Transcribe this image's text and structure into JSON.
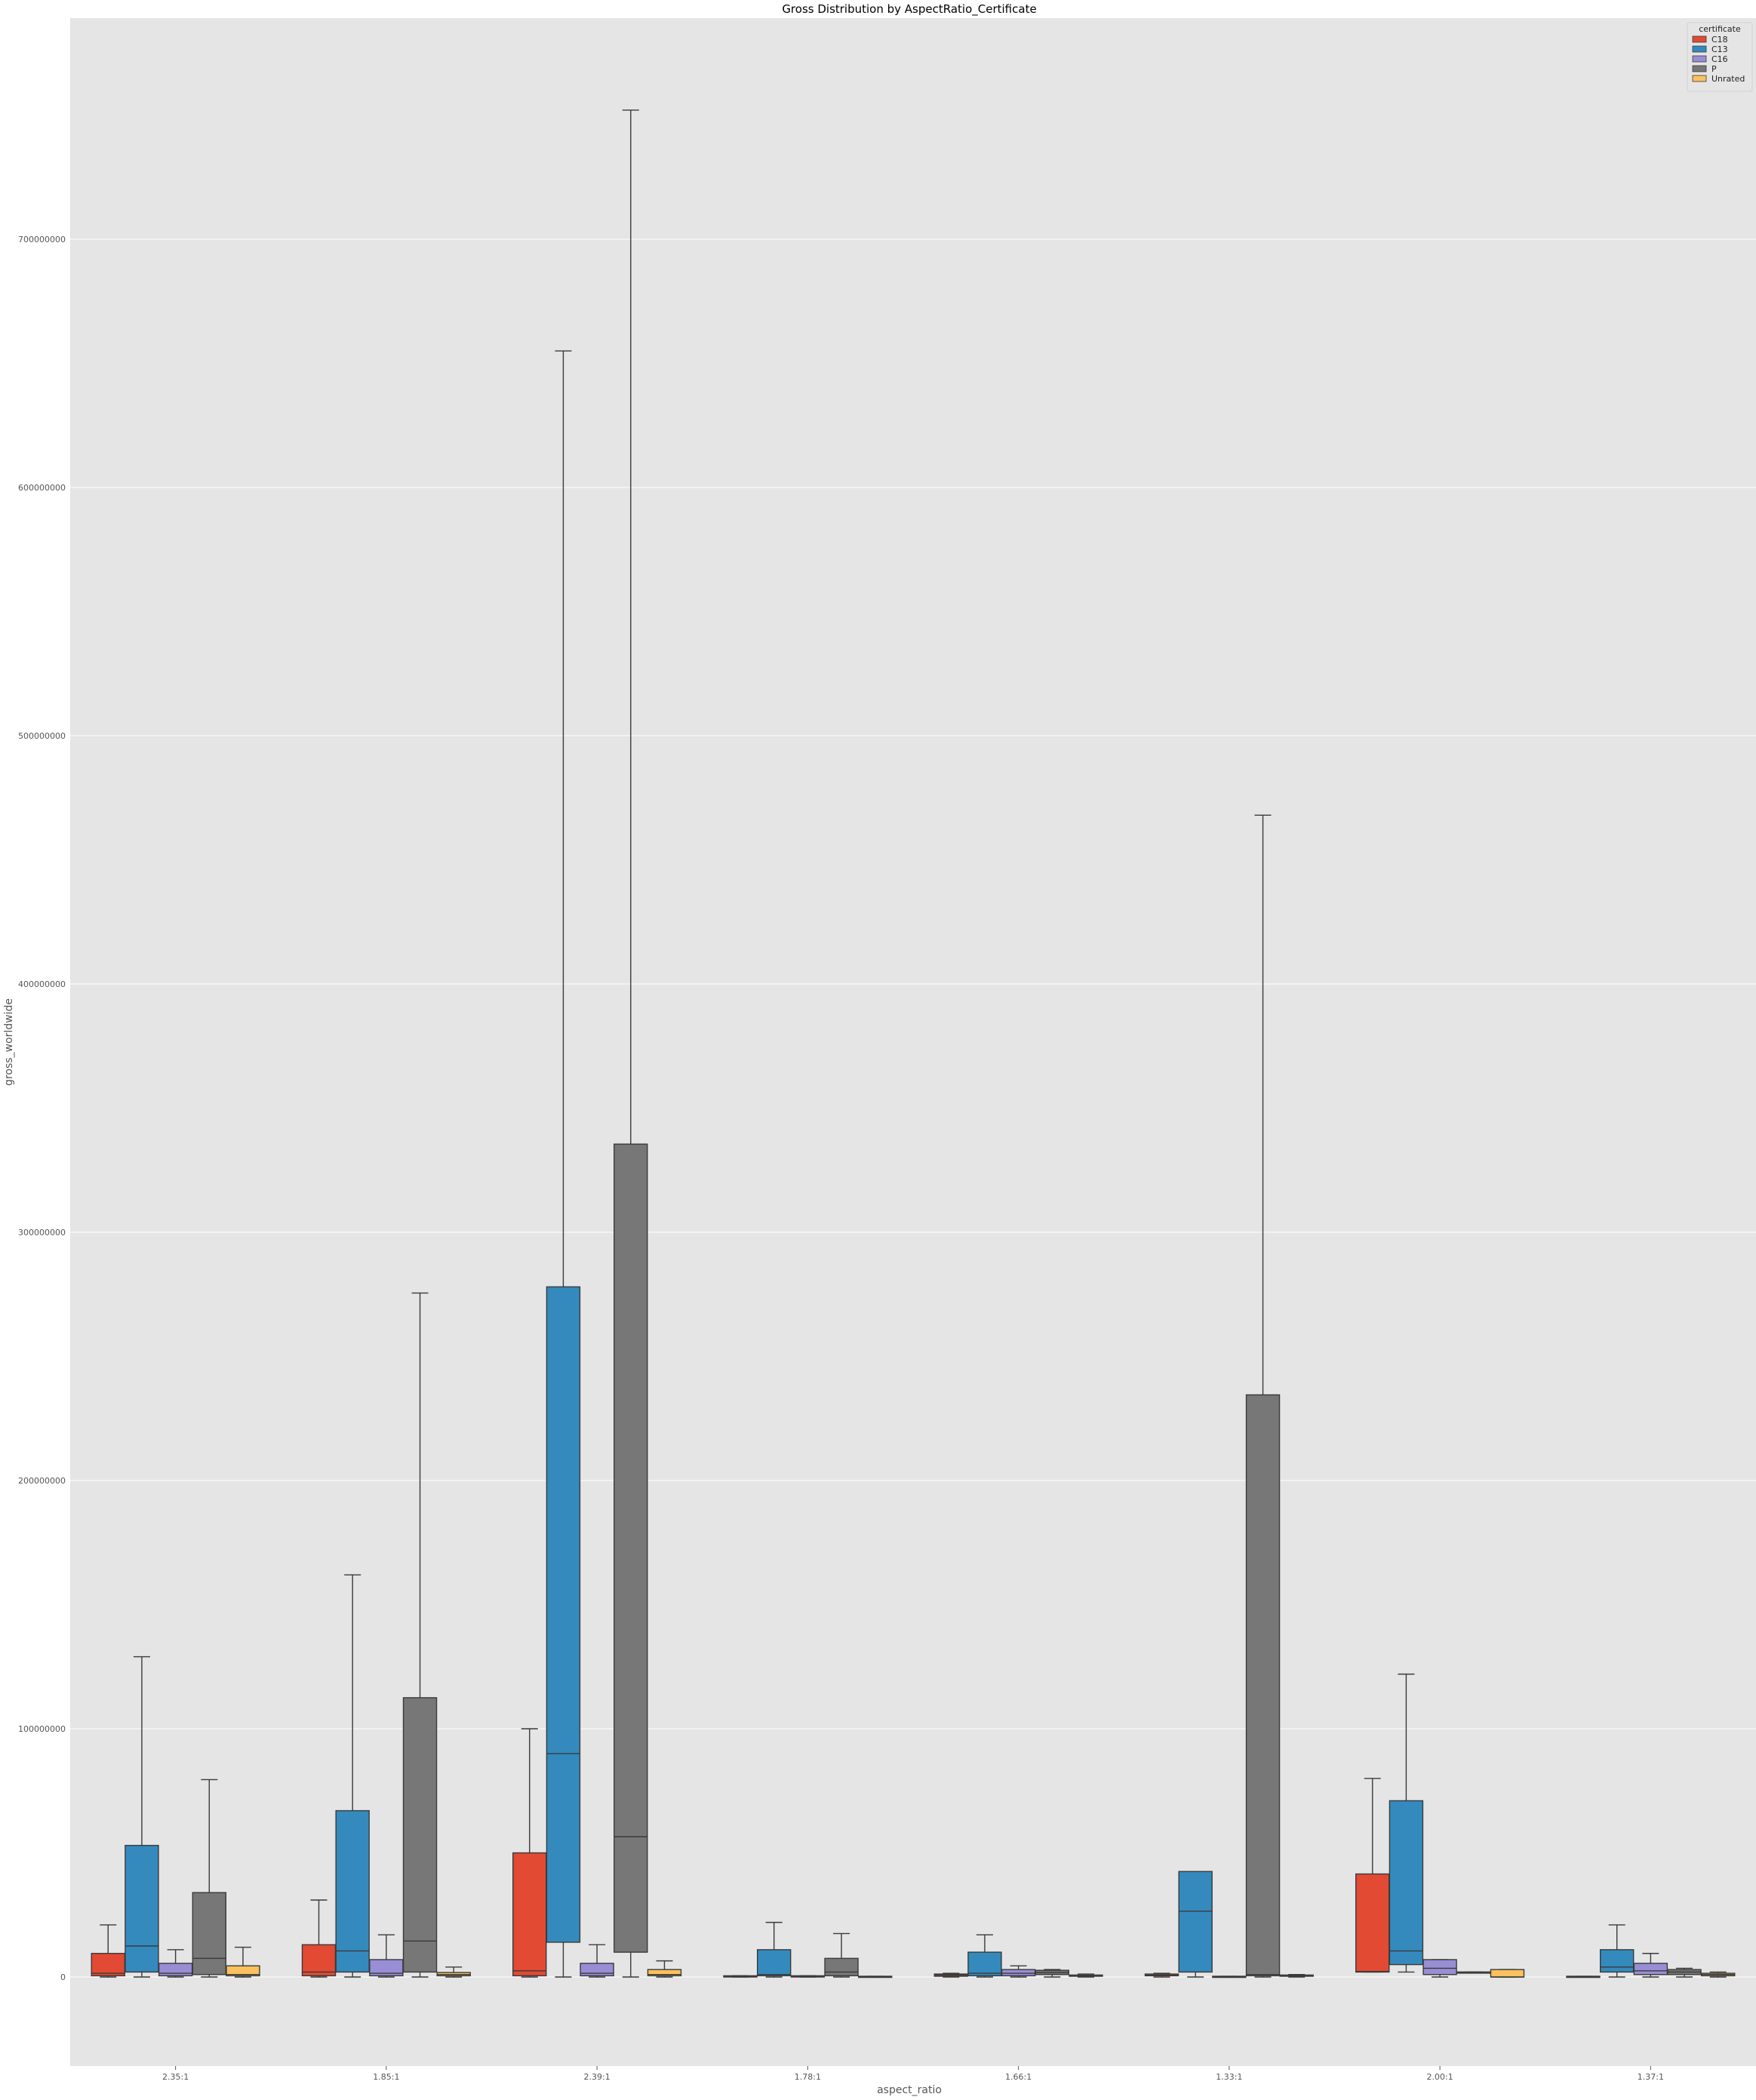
{
  "chart_data": {
    "type": "box",
    "title": "Gross Distribution by AspectRatio_Certificate",
    "xlabel": "aspect_ratio",
    "ylabel": "gross_worldwide",
    "ylim": [
      -40000000,
      790000000
    ],
    "yticks": [
      0,
      100000000,
      200000000,
      300000000,
      400000000,
      500000000,
      600000000,
      700000000
    ],
    "grid": true,
    "legend": {
      "title": "certificate",
      "placement": "top-right"
    },
    "categories": [
      "2.35:1",
      "1.85:1",
      "2.39:1",
      "1.78:1",
      "1.66:1",
      "1.33:1",
      "2.00:1",
      "1.37:1"
    ],
    "series": [
      {
        "name": "C18",
        "color": "#e24a33",
        "boxes": [
          {
            "whislo": 0,
            "q1": 500000,
            "med": 1500000,
            "q3": 9500000,
            "whishi": 21000000
          },
          {
            "whislo": 0,
            "q1": 500000,
            "med": 2000000,
            "q3": 13000000,
            "whishi": 31000000
          },
          {
            "whislo": 0,
            "q1": 500000,
            "med": 2500000,
            "q3": 50000000,
            "whishi": 100000000
          },
          {
            "whislo": 0,
            "q1": 0,
            "med": 200000,
            "q3": 500000,
            "whishi": 500000
          },
          {
            "whislo": 0,
            "q1": 300000,
            "med": 800000,
            "q3": 1200000,
            "whishi": 1500000
          },
          {
            "whislo": 0,
            "q1": 500000,
            "med": 700000,
            "q3": 1200000,
            "whishi": 1500000
          },
          {
            "whislo": 2000000,
            "q1": 2000000,
            "med": 2200000,
            "q3": 41500000,
            "whishi": 80000000
          },
          {
            "whislo": 0,
            "q1": 0,
            "med": 0,
            "q3": 300000,
            "whishi": 300000
          }
        ]
      },
      {
        "name": "C13",
        "color": "#348abd",
        "boxes": [
          {
            "whislo": 0,
            "q1": 2000000,
            "med": 12500000,
            "q3": 53000000,
            "whishi": 129000000
          },
          {
            "whislo": 0,
            "q1": 2000000,
            "med": 10500000,
            "q3": 67000000,
            "whishi": 162000000
          },
          {
            "whislo": 0,
            "q1": 14000000,
            "med": 90000000,
            "q3": 278000000,
            "whishi": 655000000
          },
          {
            "whislo": 0,
            "q1": 500000,
            "med": 1000000,
            "q3": 11000000,
            "whishi": 22000000
          },
          {
            "whislo": 0,
            "q1": 500000,
            "med": 1500000,
            "q3": 10000000,
            "whishi": 17000000
          },
          {
            "whislo": 0,
            "q1": 2000000,
            "med": 26500000,
            "q3": 42500000,
            "whishi": 42500000
          },
          {
            "whislo": 2000000,
            "q1": 5000000,
            "med": 10500000,
            "q3": 71000000,
            "whishi": 122000000
          },
          {
            "whislo": 0,
            "q1": 2000000,
            "med": 4000000,
            "q3": 11000000,
            "whishi": 21000000
          }
        ]
      },
      {
        "name": "C16",
        "color": "#988ed5",
        "boxes": [
          {
            "whislo": 0,
            "q1": 500000,
            "med": 1500000,
            "q3": 5500000,
            "whishi": 11000000
          },
          {
            "whislo": 0,
            "q1": 500000,
            "med": 1500000,
            "q3": 7000000,
            "whishi": 17000000
          },
          {
            "whislo": 0,
            "q1": 500000,
            "med": 1500000,
            "q3": 5500000,
            "whishi": 13000000
          },
          {
            "whislo": 0,
            "q1": 0,
            "med": 200000,
            "q3": 500000,
            "whishi": 500000
          },
          {
            "whislo": 0,
            "q1": 500000,
            "med": 1500000,
            "q3": 3000000,
            "whishi": 4500000
          },
          {
            "whislo": 0,
            "q1": 0,
            "med": 100000,
            "q3": 300000,
            "whishi": 300000
          },
          {
            "whislo": 0,
            "q1": 1000000,
            "med": 3500000,
            "q3": 7000000,
            "whishi": 7000000
          },
          {
            "whislo": 0,
            "q1": 1000000,
            "med": 2500000,
            "q3": 5500000,
            "whishi": 9500000
          }
        ]
      },
      {
        "name": "P",
        "color": "#777777",
        "boxes": [
          {
            "whislo": 0,
            "q1": 1000000,
            "med": 7500000,
            "q3": 34000000,
            "whishi": 79500000
          },
          {
            "whislo": 0,
            "q1": 2000000,
            "med": 14500000,
            "q3": 112500000,
            "whishi": 275500000
          },
          {
            "whislo": 0,
            "q1": 10000000,
            "med": 56500000,
            "q3": 335500000,
            "whishi": 752000000
          },
          {
            "whislo": 0,
            "q1": 500000,
            "med": 2000000,
            "q3": 7500000,
            "whishi": 17500000
          },
          {
            "whislo": 0,
            "q1": 1000000,
            "med": 1800000,
            "q3": 2700000,
            "whishi": 3000000
          },
          {
            "whislo": 0,
            "q1": 500000,
            "med": 1000000,
            "q3": 234500000,
            "whishi": 468000000
          },
          {
            "whislo": 2000000,
            "q1": 2000000,
            "med": 2000000,
            "q3": 2000000,
            "whishi": 2000000
          },
          {
            "whislo": 0,
            "q1": 1000000,
            "med": 2000000,
            "q3": 3000000,
            "whishi": 3500000
          }
        ]
      },
      {
        "name": "Unrated",
        "color": "#fbc15e",
        "boxes": [
          {
            "whislo": 0,
            "q1": 500000,
            "med": 1000000,
            "q3": 4500000,
            "whishi": 12000000
          },
          {
            "whislo": 0,
            "q1": 500000,
            "med": 1000000,
            "q3": 1800000,
            "whishi": 4000000
          },
          {
            "whislo": 0,
            "q1": 500000,
            "med": 1000000,
            "q3": 3000000,
            "whishi": 6500000
          },
          {
            "whislo": 0,
            "q1": 0,
            "med": 100000,
            "q3": 300000,
            "whishi": 300000
          },
          {
            "whislo": 0,
            "q1": 300000,
            "med": 500000,
            "q3": 800000,
            "whishi": 1200000
          },
          {
            "whislo": 0,
            "q1": 300000,
            "med": 500000,
            "q3": 800000,
            "whishi": 1000000
          },
          {
            "whislo": 0,
            "q1": 0,
            "med": 0,
            "q3": 3000000,
            "whishi": 3000000
          },
          {
            "whislo": 0,
            "q1": 500000,
            "med": 1000000,
            "q3": 1500000,
            "whishi": 2000000
          }
        ]
      }
    ]
  }
}
